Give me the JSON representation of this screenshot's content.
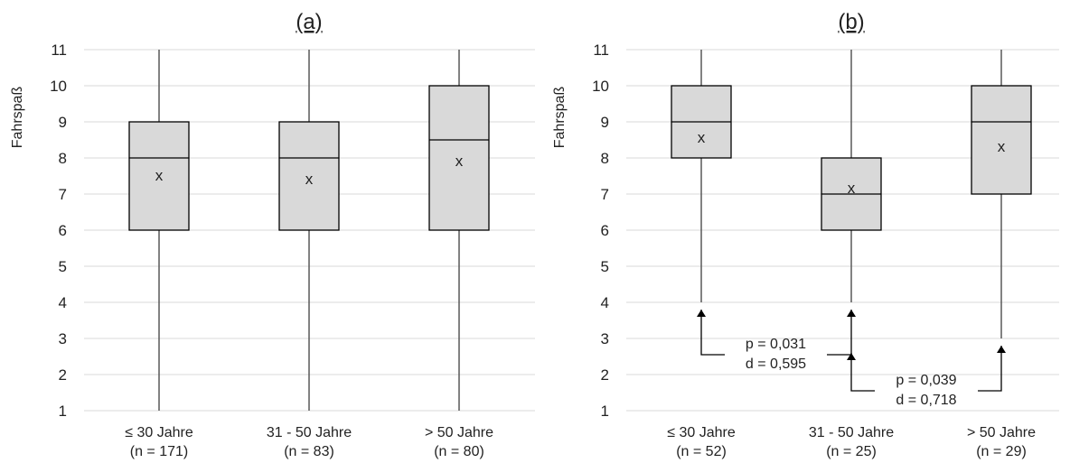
{
  "chart_data": [
    {
      "type": "box",
      "title": "(a)",
      "ylabel": "Fahrspaß",
      "ylim": [
        1,
        11
      ],
      "yticks": [
        1,
        2,
        3,
        4,
        5,
        6,
        7,
        8,
        9,
        10,
        11
      ],
      "grid": true,
      "mean_marker": "x",
      "categories": [
        {
          "line1": "≤ 30 Jahre",
          "line2": "(n = 171)"
        },
        {
          "line1": "31 - 50 Jahre",
          "line2": "(n = 83)"
        },
        {
          "line1": "> 50 Jahre",
          "line2": "(n = 80)"
        }
      ],
      "boxes": [
        {
          "min": 1,
          "q1": 6,
          "median": 8,
          "q3": 9,
          "max": 11,
          "mean": 7.5
        },
        {
          "min": 1,
          "q1": 6,
          "median": 8,
          "q3": 9,
          "max": 11,
          "mean": 7.4
        },
        {
          "min": 1,
          "q1": 6,
          "median": 8.5,
          "q3": 10,
          "max": 11,
          "mean": 7.9
        }
      ],
      "annotations": []
    },
    {
      "type": "box",
      "title": "(b)",
      "ylabel": "Fahrspaß",
      "ylim": [
        1,
        11
      ],
      "yticks": [
        1,
        2,
        3,
        4,
        5,
        6,
        7,
        8,
        9,
        10,
        11
      ],
      "grid": true,
      "mean_marker": "x",
      "categories": [
        {
          "line1": "≤ 30 Jahre",
          "line2": "(n = 52)"
        },
        {
          "line1": "31 - 50 Jahre",
          "line2": "(n = 25)"
        },
        {
          "line1": "> 50 Jahre",
          "line2": "(n = 29)"
        }
      ],
      "boxes": [
        {
          "min": 4,
          "q1": 8,
          "median": 9,
          "q3": 10,
          "max": 11,
          "mean": 8.55
        },
        {
          "min": 4,
          "q1": 6,
          "median": 7,
          "q3": 8,
          "max": 11,
          "mean": 7.15
        },
        {
          "min": 3,
          "q1": 7,
          "median": 9,
          "q3": 10,
          "max": 11,
          "mean": 8.3
        }
      ],
      "annotations": [
        {
          "from": 0,
          "to": 1,
          "p": "p = 0,031",
          "d": "d = 0,595"
        },
        {
          "from": 1,
          "to": 2,
          "p": "p = 0,039",
          "d": "d = 0,718"
        }
      ]
    }
  ]
}
